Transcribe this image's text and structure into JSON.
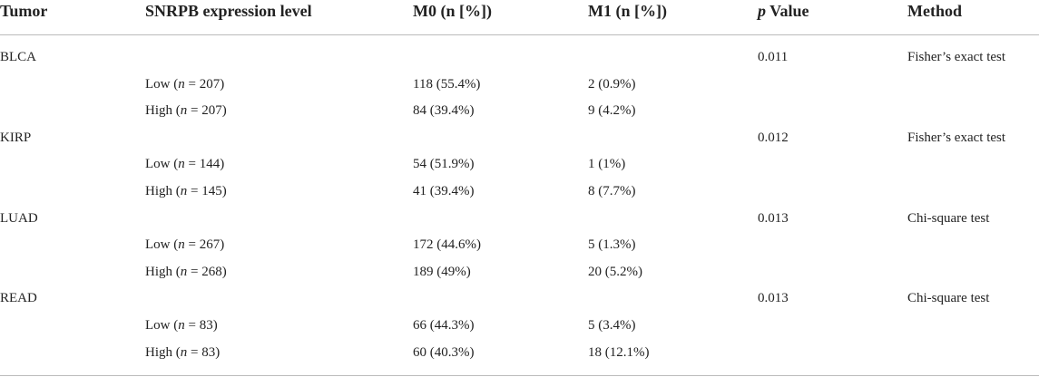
{
  "table": {
    "header": [
      [
        "Tumor"
      ],
      [
        "SNRPB expression level"
      ],
      [
        "M0 (n [%])"
      ],
      [
        "M1 (n [%])"
      ],
      [
        "",
        "p",
        " Value"
      ],
      [
        "Method"
      ]
    ],
    "groups": [
      {
        "tumor": "BLCA",
        "p_value": "0.011",
        "method": "Fisher’s exact test",
        "rows": [
          {
            "level": [
              "Low (",
              "n",
              " = 207)"
            ],
            "m0": "118 (55.4%)",
            "m1": "2 (0.9%)"
          },
          {
            "level": [
              "High (",
              "n",
              " = 207)"
            ],
            "m0": "84 (39.4%)",
            "m1": "9 (4.2%)"
          }
        ]
      },
      {
        "tumor": "KIRP",
        "p_value": "0.012",
        "method": "Fisher’s exact test",
        "rows": [
          {
            "level": [
              "Low (",
              "n",
              " = 144)"
            ],
            "m0": "54 (51.9%)",
            "m1": "1 (1%)"
          },
          {
            "level": [
              "High (",
              "n",
              " = 145)"
            ],
            "m0": "41 (39.4%)",
            "m1": "8 (7.7%)"
          }
        ]
      },
      {
        "tumor": "LUAD",
        "p_value": "0.013",
        "method": "Chi-square test",
        "rows": [
          {
            "level": [
              "Low (",
              "n",
              " = 267)"
            ],
            "m0": "172 (44.6%)",
            "m1": "5 (1.3%)"
          },
          {
            "level": [
              "High (",
              "n",
              " = 268)"
            ],
            "m0": "189 (49%)",
            "m1": "20 (5.2%)"
          }
        ]
      },
      {
        "tumor": "READ",
        "p_value": "0.013",
        "method": "Chi-square test",
        "rows": [
          {
            "level": [
              "Low (",
              "n",
              " = 83)"
            ],
            "m0": "66 (44.3%)",
            "m1": "5 (3.4%)"
          },
          {
            "level": [
              "High (",
              "n",
              " = 83)"
            ],
            "m0": "60 (40.3%)",
            "m1": "18 (12.1%)"
          }
        ]
      }
    ]
  }
}
